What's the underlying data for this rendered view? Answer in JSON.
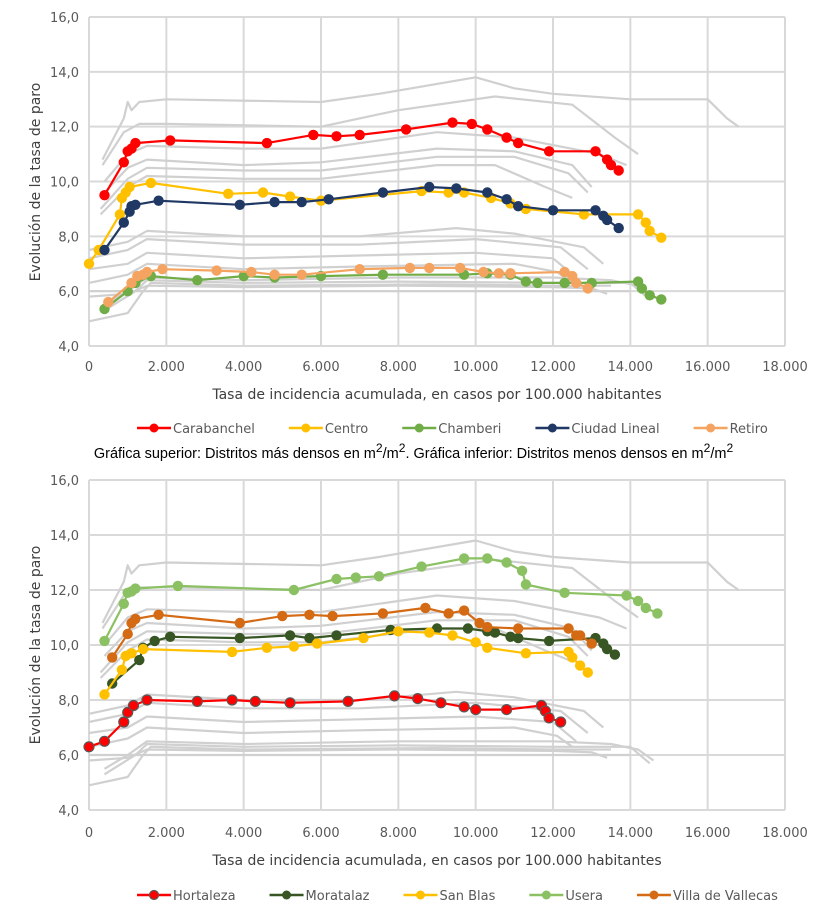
{
  "caption": {
    "part1": "Gráfica superior: Distritos más densos en m",
    "sup1": "2",
    "part2": "/m",
    "sup2": "2",
    "part3": ". Gráfica inferior: Distritos menos densos en m",
    "sup3": "2",
    "part4": "/m",
    "sup4": "2"
  },
  "chart_data": [
    {
      "type": "line",
      "title": "",
      "xlabel": "Tasa de incidencia acumulada, en casos por 100.000 habitantes",
      "ylabel": "Evolución de la tasa de paro",
      "xlim": [
        0,
        18000
      ],
      "ylim": [
        4,
        16
      ],
      "xticks": [
        "0",
        "2.000",
        "4.000",
        "6.000",
        "8.000",
        "10.000",
        "12.000",
        "14.000",
        "16.000",
        "18.000"
      ],
      "yticks": [
        "4,0",
        "6,0",
        "8,0",
        "10,0",
        "12,0",
        "14,0",
        "16,0"
      ],
      "grid": true,
      "legend": "bottom",
      "series": [
        {
          "name": "Carabanchel",
          "color": "#FF0000",
          "outline": false,
          "x": [
            400,
            900,
            1000,
            1100,
            1200,
            2100,
            4600,
            5800,
            6400,
            7000,
            8200,
            9400,
            9900,
            10300,
            10800,
            11100,
            11900,
            13100,
            13400,
            13500,
            13700
          ],
          "y": [
            9.5,
            10.7,
            11.1,
            11.2,
            11.4,
            11.5,
            11.4,
            11.7,
            11.65,
            11.7,
            11.9,
            12.15,
            12.1,
            11.9,
            11.6,
            11.4,
            11.1,
            11.1,
            10.8,
            10.6,
            10.4
          ]
        },
        {
          "name": "Centro",
          "color": "#FFC000",
          "outline": false,
          "x": [
            0,
            250,
            800,
            850,
            950,
            1050,
            1600,
            3600,
            4500,
            5200,
            6000,
            8600,
            9300,
            9700,
            10400,
            10900,
            11300,
            12800,
            14200,
            14400,
            14500,
            14800
          ],
          "y": [
            7.0,
            7.5,
            8.8,
            9.4,
            9.6,
            9.8,
            9.95,
            9.55,
            9.6,
            9.45,
            9.3,
            9.65,
            9.6,
            9.6,
            9.4,
            9.2,
            9.0,
            8.8,
            8.8,
            8.5,
            8.2,
            7.95
          ]
        },
        {
          "name": "Chamberi",
          "color": "#70AD47",
          "outline": false,
          "x": [
            400,
            1000,
            1200,
            1600,
            2800,
            4000,
            4800,
            6000,
            7600,
            9700,
            10300,
            10900,
            11300,
            11600,
            12300,
            13000,
            14200,
            14300,
            14500,
            14800
          ],
          "y": [
            5.35,
            6.0,
            6.3,
            6.55,
            6.4,
            6.55,
            6.5,
            6.55,
            6.6,
            6.6,
            6.65,
            6.6,
            6.35,
            6.3,
            6.3,
            6.3,
            6.35,
            6.1,
            5.85,
            5.7
          ]
        },
        {
          "name": "Ciudad Lineal",
          "color": "#203864",
          "outline": false,
          "x": [
            400,
            900,
            1050,
            1100,
            1200,
            1800,
            3900,
            4800,
            5500,
            6200,
            7600,
            8800,
            9500,
            10300,
            10800,
            11100,
            12000,
            13100,
            13300,
            13400,
            13700
          ],
          "y": [
            7.5,
            8.5,
            8.9,
            9.1,
            9.15,
            9.3,
            9.15,
            9.25,
            9.25,
            9.35,
            9.6,
            9.8,
            9.75,
            9.6,
            9.35,
            9.1,
            8.95,
            8.95,
            8.75,
            8.6,
            8.3
          ]
        },
        {
          "name": "Retiro",
          "color": "#F4A460",
          "outline": false,
          "x": [
            500,
            1100,
            1250,
            1400,
            1500,
            1900,
            3300,
            4200,
            4800,
            5500,
            7000,
            8300,
            8800,
            9600,
            10200,
            10600,
            10900,
            12300,
            12500,
            12600,
            12900
          ],
          "y": [
            5.6,
            6.3,
            6.55,
            6.6,
            6.7,
            6.8,
            6.75,
            6.7,
            6.6,
            6.6,
            6.8,
            6.85,
            6.85,
            6.85,
            6.7,
            6.65,
            6.65,
            6.7,
            6.55,
            6.3,
            6.1
          ]
        }
      ]
    },
    {
      "type": "line",
      "title": "",
      "xlabel": "Tasa de incidencia acumulada, en casos por 100.000 habitantes",
      "ylabel": "Evolución de la tasa de paro",
      "xlim": [
        0,
        18000
      ],
      "ylim": [
        4,
        16
      ],
      "xticks": [
        "0",
        "2.000",
        "4.000",
        "6.000",
        "8.000",
        "10.000",
        "12.000",
        "14.000",
        "16.000",
        "18.000"
      ],
      "yticks": [
        "4,0",
        "6,0",
        "8,0",
        "10,0",
        "12,0",
        "14,0",
        "16,0"
      ],
      "grid": true,
      "legend": "bottom",
      "series": [
        {
          "name": "Hortaleza",
          "color": "#FF0000",
          "outline": true,
          "x": [
            0,
            400,
            900,
            1000,
            1150,
            1500,
            2800,
            3700,
            4300,
            5200,
            6700,
            7900,
            8500,
            9100,
            9700,
            10000,
            10800,
            11700,
            11800,
            11900,
            12200
          ],
          "y": [
            6.3,
            6.5,
            7.2,
            7.55,
            7.8,
            8.0,
            7.95,
            8.0,
            7.95,
            7.9,
            7.95,
            8.15,
            8.05,
            7.9,
            7.75,
            7.65,
            7.65,
            7.8,
            7.6,
            7.35,
            7.2
          ]
        },
        {
          "name": "Moratalaz",
          "color": "#375623",
          "outline": false,
          "x": [
            600,
            1300,
            1400,
            1700,
            2100,
            3900,
            5200,
            5700,
            6400,
            7800,
            9000,
            9800,
            10300,
            10500,
            10900,
            11100,
            11900,
            13100,
            13300,
            13400,
            13600
          ],
          "y": [
            8.6,
            9.45,
            9.9,
            10.15,
            10.3,
            10.25,
            10.35,
            10.25,
            10.35,
            10.55,
            10.6,
            10.6,
            10.5,
            10.45,
            10.3,
            10.25,
            10.15,
            10.25,
            10.05,
            9.85,
            9.65
          ]
        },
        {
          "name": "San Blas",
          "color": "#FFC000",
          "outline": false,
          "x": [
            400,
            850,
            950,
            1100,
            1400,
            3700,
            4600,
            5300,
            5900,
            7100,
            8000,
            8800,
            9400,
            10000,
            10300,
            11300,
            12400,
            12500,
            12700,
            12900
          ],
          "y": [
            8.2,
            9.1,
            9.6,
            9.7,
            9.85,
            9.75,
            9.9,
            9.95,
            10.05,
            10.25,
            10.5,
            10.45,
            10.35,
            10.1,
            9.9,
            9.7,
            9.75,
            9.55,
            9.25,
            9.0
          ]
        },
        {
          "name": "Usera",
          "color": "#8BC163",
          "outline": false,
          "x": [
            400,
            900,
            1000,
            1100,
            1200,
            2300,
            5300,
            6400,
            6900,
            7500,
            8600,
            9700,
            10300,
            10800,
            11200,
            11300,
            12300,
            13900,
            14200,
            14400,
            14700
          ],
          "y": [
            10.15,
            11.5,
            11.9,
            11.95,
            12.05,
            12.15,
            12.0,
            12.4,
            12.45,
            12.5,
            12.85,
            13.15,
            13.15,
            13.0,
            12.7,
            12.2,
            11.9,
            11.8,
            11.6,
            11.35,
            11.15
          ]
        },
        {
          "name": "Villa de Vallecas",
          "color": "#D46A14",
          "outline": false,
          "x": [
            600,
            1000,
            1100,
            1200,
            1800,
            3900,
            5000,
            5700,
            6300,
            7600,
            8700,
            9300,
            9700,
            10100,
            10300,
            11100,
            12400,
            12600,
            12700,
            13000
          ],
          "y": [
            9.55,
            10.4,
            10.8,
            10.95,
            11.1,
            10.8,
            11.05,
            11.1,
            11.05,
            11.15,
            11.35,
            11.15,
            11.25,
            10.8,
            10.65,
            10.6,
            10.6,
            10.35,
            10.35,
            10.05
          ]
        }
      ]
    }
  ]
}
